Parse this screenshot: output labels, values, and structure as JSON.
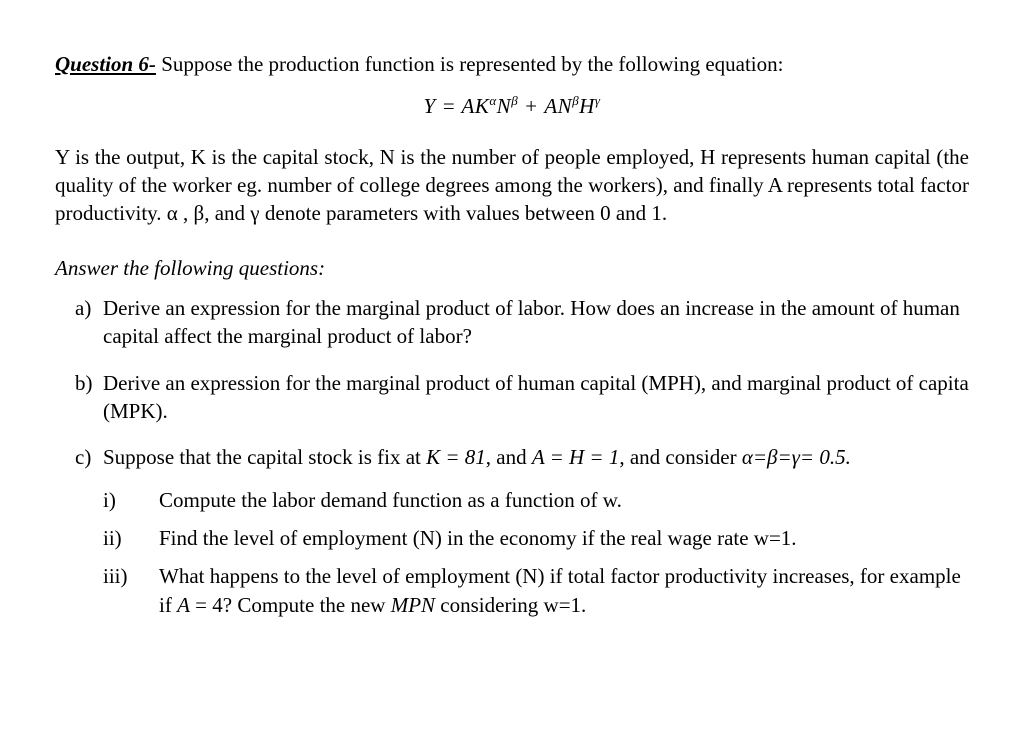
{
  "header": {
    "label": "Question 6-",
    "text": " Suppose the production function is represented by the following equation:"
  },
  "equation_html": "Y = AK<span class='sup'>α</span>N<span class='sup'>β</span> + AN<span class='sup'>β</span>H<span class='sup'>γ</span>",
  "description": "Y is the output, K is the capital stock, N is the number of people employed, H represents human capital (the quality of the worker eg. number of college degrees among the workers), and finally A represents total factor productivity. α , β, and γ denote parameters with values between 0 and 1.",
  "answer_header": "Answer the following questions:",
  "items": {
    "a": {
      "bullet": "a)",
      "text": "Derive an expression for the marginal product of labor. How does an increase in the amount of human capital affect the marginal product of labor?"
    },
    "b": {
      "bullet": "b)",
      "text": "Derive an expression for the marginal product of human capital (MPH), and marginal product of capita (MPK)."
    },
    "c": {
      "bullet": "c)",
      "intro_html": "Suppose that the capital stock is fix at <span class='it'>K = 81</span>, and <span class='it'>A = H = 1</span>, and consider <span class='it'>α=β=γ= 0.5.</span>",
      "sub": {
        "i": {
          "bullet": "i)",
          "text": "Compute the labor demand function as a function of w."
        },
        "ii": {
          "bullet": "ii)",
          "text": "Find the level of employment (N) in the economy if the real wage rate w=1."
        },
        "iii": {
          "bullet": "iii)",
          "html": "What happens to the level of employment (N) if total factor productivity increases, for example if <span class='it'>A</span> = 4? Compute the new <span class='it'>MPN</span> considering w=1."
        }
      }
    }
  }
}
